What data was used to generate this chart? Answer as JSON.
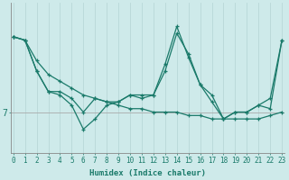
{
  "xlabel": "Humidex (Indice chaleur)",
  "background_color": "#ceeaea",
  "line_color": "#1a7a6a",
  "grid_color_v": "#b8d8d8",
  "grid_color_h": "#aaaaaa",
  "ytick_label": "7",
  "ytick_value": 7.0,
  "ylim": [
    5.8,
    10.2
  ],
  "xlim": [
    -0.2,
    23.2
  ],
  "series": [
    [
      9.2,
      9.1,
      8.5,
      8.1,
      7.9,
      7.7,
      7.5,
      7.4,
      7.3,
      7.2,
      7.1,
      7.1,
      7.0,
      7.0,
      7.0,
      6.9,
      6.9,
      6.8,
      6.8,
      6.8,
      6.8,
      6.8,
      6.9,
      7.0
    ],
    [
      9.2,
      9.1,
      8.2,
      7.6,
      7.5,
      7.2,
      6.5,
      6.8,
      7.2,
      7.3,
      7.5,
      7.4,
      7.5,
      8.2,
      9.3,
      8.7,
      7.8,
      7.3,
      6.8,
      7.0,
      7.0,
      7.2,
      7.1,
      9.1
    ],
    [
      9.2,
      9.1,
      8.2,
      7.6,
      7.6,
      7.4,
      7.0,
      7.4,
      7.3,
      7.3,
      7.5,
      7.5,
      7.5,
      8.4,
      9.5,
      8.6,
      7.8,
      7.5,
      6.8,
      7.0,
      7.0,
      7.2,
      7.4,
      9.1
    ]
  ]
}
